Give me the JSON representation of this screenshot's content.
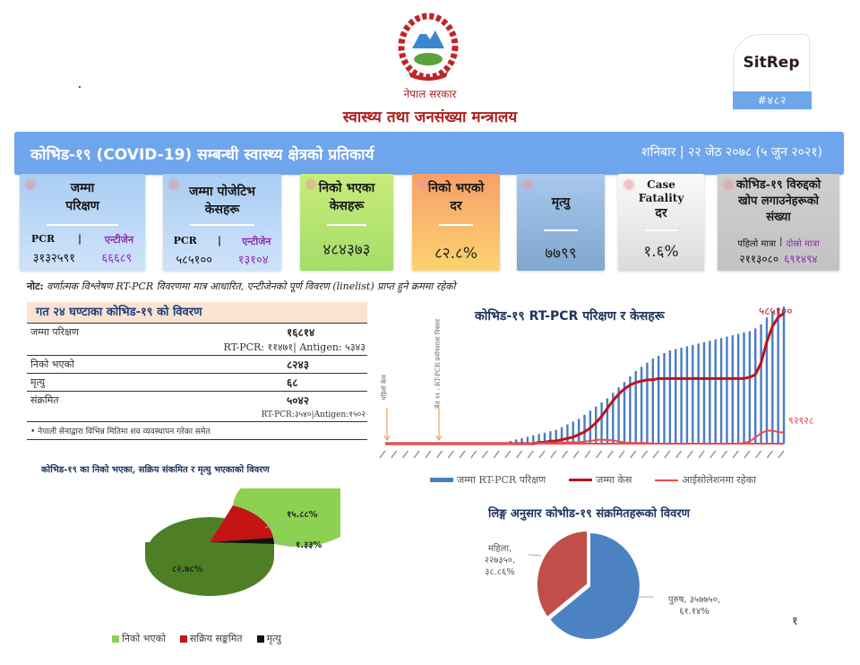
{
  "header": {
    "gov_name": "नेपाल सरकार",
    "ministry": "स्वास्थ्य तथा जनसंख्या मन्त्रालय",
    "sitrep_label": "SitRep",
    "sitrep_number": "#४८२"
  },
  "titlebar": {
    "title": "कोभिड-१९ (COVID-19) सम्बन्धी स्वास्थ्य क्षेत्रको प्रतिकार्य",
    "date": "शनिबार | २२ जेठ २०७८ (५ जुन २०२१)"
  },
  "cards": [
    {
      "title_line1": "जम्मा",
      "title_line2": "परिक्षण",
      "sub_left_label": "PCR",
      "sub_sep": "|",
      "sub_right_label": "एन्टीजेन",
      "value_left": "३१३२५९१",
      "value_right": "६६६८९"
    },
    {
      "title_line1": "जम्मा पोजेटिभ",
      "title_line2": "केसहरू",
      "sub_left_label": "PCR",
      "sub_sep": "|",
      "sub_right_label": "एन्टीजेन",
      "value_left": "५८५१००",
      "value_right": "१३१०४"
    },
    {
      "title_line1": "निको भएका",
      "title_line2": "केसहरू",
      "value": "४८४३७३"
    },
    {
      "title_line1": "निको भएको",
      "title_line2": "दर",
      "value": "८२.८%"
    },
    {
      "title_line1": "मृत्यु",
      "value": "७७९९"
    },
    {
      "title_line1": "Case",
      "title_line2": "Fatality",
      "title_line3": "दर",
      "value": "१.६%"
    },
    {
      "title_line1": "कोभिड-१९ विरुद्दको",
      "title_line2": "खोप लगाउनेहरूको",
      "title_line3": "संख्या",
      "sub_left_label": "पहिलो मात्रा",
      "sub_sep": "|",
      "sub_right_label": "दोस्रो मात्रा",
      "value_left": "२११३०८०",
      "value_right": "६९१४९४"
    }
  ],
  "note": {
    "label": "नोट:",
    "text": "वर्णात्मक विश्लेषण RT-PCR विवरणमा मात्र आधारित, एन्टीजेनको पूर्ण विवरण (linelist) प्राप्त हुने क्रममा रहेको"
  },
  "last24": {
    "title": "गत २४ घण्टाका कोभिड-१९ को विवरण",
    "rows": [
      {
        "label": "जम्मा परिक्षण",
        "value": "१६८१४",
        "sub": "RT-PCR: ११४७१| Antigen: ५३४३"
      },
      {
        "label": "निको भएको",
        "value": "८२४३"
      },
      {
        "label": "मृत्यु",
        "value": "६८"
      },
      {
        "label": "संक्रमित",
        "value": "५०४२",
        "sub": "RT-PCR:३५४०|Antigen:१५०२"
      }
    ],
    "footnote": "• नेपाली सेनाद्वारा विभिन्न मितिमा शव व्यवस्थापन गरेका समेत"
  },
  "chart_data": [
    {
      "type": "bar",
      "title": "कोभिड-१९ RT-PCR परिक्षण र केसहरू",
      "annotations": [
        "पहिलो केस",
        "चैत ११ : RT-PCR प्रयोगशाला विस्तार"
      ],
      "end_labels": {
        "total_cases": "५८५१००",
        "isolation": "९२९२८"
      },
      "xlabel": "",
      "ylabel": "",
      "grid": false,
      "legend_position": "bottom",
      "series": [
        {
          "name": "जम्मा RT-PCR परिक्षण",
          "kind": "bar",
          "color": "#4a7cc0",
          "values": [
            0,
            0,
            0,
            0,
            0,
            0,
            0,
            0,
            0,
            0,
            0,
            0,
            0,
            0,
            0,
            0,
            0,
            0,
            0,
            0,
            0,
            1,
            2,
            3,
            4,
            5,
            6,
            7,
            8,
            9,
            10,
            12,
            14,
            16,
            18,
            21,
            24,
            27,
            30,
            33,
            37,
            41,
            45,
            49,
            53,
            56,
            59,
            62,
            64,
            66,
            68,
            69,
            70,
            71,
            72,
            73,
            74,
            75,
            76,
            77,
            78,
            79,
            80,
            81,
            82,
            84,
            87,
            92,
            96,
            99,
            100
          ]
        },
        {
          "name": "जम्मा केस",
          "kind": "line",
          "color": "#c0121a",
          "values": [
            0,
            0,
            0,
            0,
            0,
            0,
            0,
            0,
            0,
            0,
            0,
            0,
            0,
            0,
            0,
            0,
            0,
            0,
            0,
            0,
            0,
            0,
            0,
            0,
            0,
            0,
            0,
            1,
            1,
            2,
            2,
            3,
            4,
            5,
            7,
            9,
            12,
            16,
            21,
            27,
            33,
            38,
            42,
            45,
            47,
            48,
            49,
            49,
            50,
            50,
            50,
            50,
            50,
            50,
            50,
            50,
            50,
            50,
            50,
            50,
            50,
            50,
            50,
            50,
            51,
            53,
            62,
            78,
            90,
            97,
            100
          ]
        },
        {
          "name": "आईसोलेशनमा रहेका",
          "kind": "line",
          "color": "#f04a4a",
          "values": [
            0,
            0,
            0,
            0,
            0,
            0,
            0,
            0,
            0,
            0,
            0,
            0,
            0,
            0,
            0,
            0,
            0,
            0,
            0,
            0,
            0,
            0,
            0,
            0,
            0,
            0,
            1,
            1,
            1,
            1,
            1,
            1,
            2,
            2,
            2,
            3,
            4,
            5,
            6,
            5,
            5,
            3,
            2,
            1,
            1,
            1,
            1,
            0,
            0,
            0,
            0,
            0,
            0,
            0,
            0,
            0,
            0,
            0,
            0,
            0,
            0,
            0,
            0,
            1,
            3,
            9,
            15,
            19,
            19,
            17,
            16
          ]
        }
      ]
    },
    {
      "type": "pie",
      "title": "कोभिड-१९ का निको भएका, सक्रिय संकमित र मृत्यु भएकाको विवरण",
      "categories": [
        "निको भएको",
        "सक्रिय सङ्कमित",
        "मृत्यु"
      ],
      "values": [
        82.78,
        15.88,
        1.33
      ],
      "labels": [
        "८२.७८%",
        "१५.८८%",
        "१.३३%"
      ],
      "colors": [
        "#8cd152",
        "#c41414",
        "#111111"
      ],
      "legend_position": "bottom"
    },
    {
      "type": "pie",
      "title": "लिङ्ग अनुसार कोभीड-१९ संक्रमितहरूको विवरण",
      "categories": [
        "पुरुष",
        "महिला"
      ],
      "values": [
        61.14,
        38.86
      ],
      "counts": [
        357750,
        227350
      ],
      "labels": [
        "पुरुष, ३५७७५०, ६१.१४%",
        "महिला, २२७३५०, ३८.८६%"
      ],
      "colors": [
        "#4d82c2",
        "#c24e4a"
      ]
    }
  ],
  "legend": {
    "bar": "जम्मा RT-PCR परिक्षण",
    "cases": "जम्मा केस",
    "isolation": "आईसोलेशनमा रहेका",
    "pie1_recovered": "निको भएको",
    "pie1_active": "सक्रिय सङ्कमित",
    "pie1_death": "मृत्यु"
  },
  "pie1_labels": {
    "recovered": "८२.७८%",
    "active": "१५.८८%",
    "death": "१.३३%"
  },
  "pie2_labels": {
    "female_l1": "महिला,",
    "female_l2": "२२७३५०,",
    "female_l3": "३८.८६%",
    "male_l1": "पुरुष, ३५७७५०,",
    "male_l2": "६१.१४%"
  },
  "bar_end_labels": {
    "cases": "५८५१००",
    "isolation": "९२९२८"
  },
  "bar_annotations": {
    "first_case": "पहिलो केस",
    "lab_expansion": "चैत ११ : RT-PCR प्रयोगशाला विस्तार"
  },
  "page_number": "१"
}
